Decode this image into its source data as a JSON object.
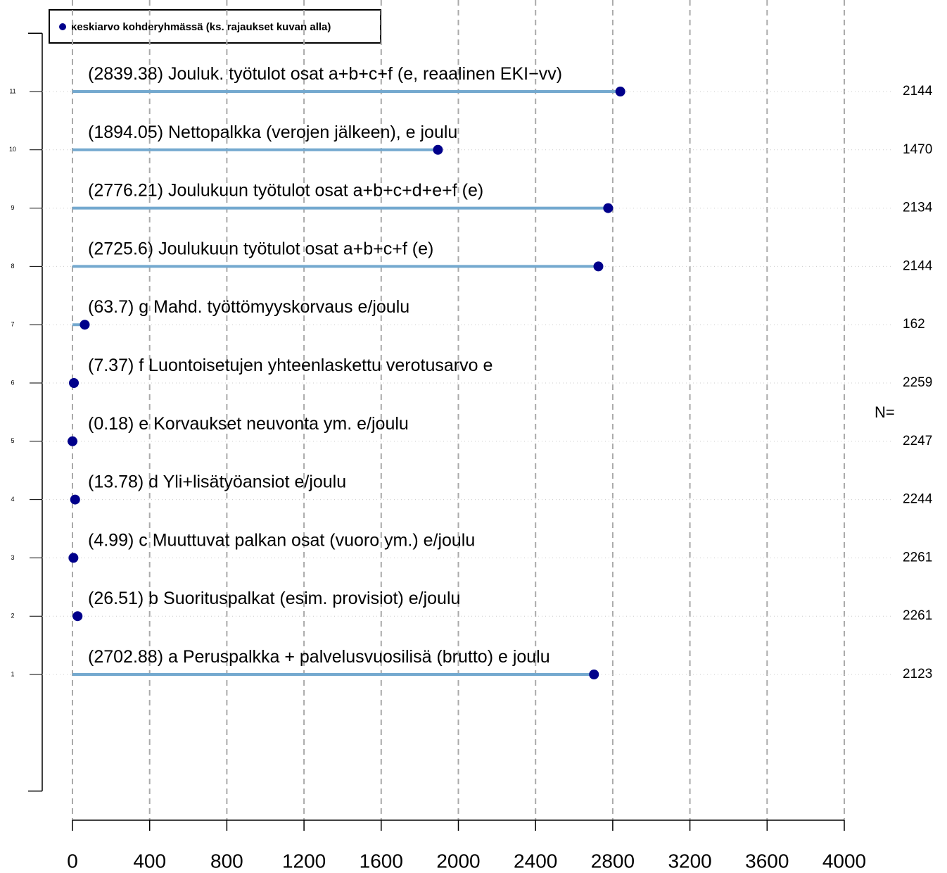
{
  "chart_data": {
    "type": "dotbar",
    "legend": "keskiarvo kohderyhmässä (ks. rajaukset kuvan alla)",
    "legend_position": "top-left",
    "categories": [
      "a Peruspalkka + palvelusvuosilisä (brutto) e joulu",
      "b Suorituspalkat (esim. provisiot) e/joulu",
      "c Muuttuvat palkan osat (vuoro ym.) e/joulu",
      "d Yli+lisätyöansiot e/joulu",
      "e Korvaukset neuvonta ym. e/joulu",
      "f Luontoisetujen yhteenlaskettu verotusarvo e",
      "g Mahd. työttömyyskorvaus e/joulu",
      "Joulukuun työtulot osat a+b+c+f (e)",
      "Joulukuun työtulot osat a+b+c+d+e+f (e)",
      "Nettopalkka (verojen jälkeen), e joulu",
      "Jouluk. työtulot osat a+b+c+f (e, reaalinen EKI−vv)"
    ],
    "values": [
      2702.88,
      26.51,
      4.99,
      13.78,
      0.18,
      7.37,
      63.7,
      2725.6,
      2776.21,
      1894.05,
      2839.38
    ],
    "value_labels": [
      "(2702.88)",
      "(26.51)",
      "(4.99)",
      "(13.78)",
      "(0.18)",
      "(7.37)",
      "(63.7)",
      "(2725.6)",
      "(2776.21)",
      "(1894.05)",
      "(2839.38)"
    ],
    "n_label": "N=",
    "n": [
      2123,
      2261,
      2261,
      2244,
      2247,
      2259,
      162,
      2144,
      2134,
      1470,
      2144
    ],
    "line_color": "#74a9cf",
    "point_color": "#00008b",
    "n_label_color": "#1a7a1a",
    "xlim": [
      0,
      4000
    ],
    "xticks": [
      0,
      400,
      800,
      1200,
      1600,
      2000,
      2400,
      2800,
      3200,
      3600,
      4000
    ],
    "ylim": [
      -1,
      12
    ],
    "yticks": [
      1,
      2,
      3,
      4,
      5,
      6,
      7,
      8,
      9,
      10,
      11
    ],
    "grid": true
  }
}
